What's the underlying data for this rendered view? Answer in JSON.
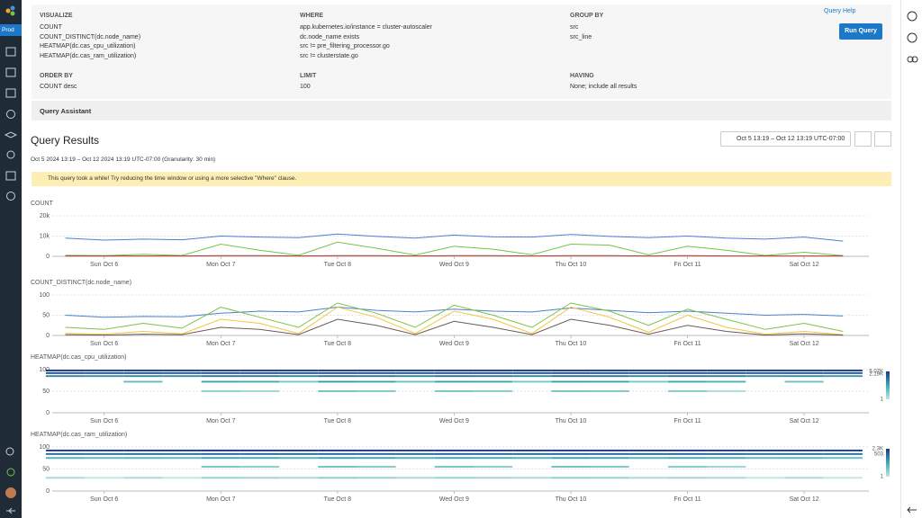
{
  "nav": {
    "env": "Prod"
  },
  "query": {
    "visualize": {
      "label": "VISUALIZE",
      "items": [
        "COUNT",
        "COUNT_DISTINCT(dc.node_name)",
        "HEATMAP(dc.cas_cpu_utilization)",
        "HEATMAP(dc.cas_ram_utilization)"
      ]
    },
    "where": {
      "label": "WHERE",
      "items": [
        "app.kubernetes.io/instance = cluster-autoscaler",
        "dc.node_name exists",
        "src != pre_filtering_processor.go",
        "src != clusterstate.go"
      ]
    },
    "group_by": {
      "label": "GROUP BY",
      "items": [
        "src",
        "src_line"
      ]
    },
    "order_by": {
      "label": "ORDER BY",
      "items": [
        "COUNT desc"
      ]
    },
    "limit": {
      "label": "LIMIT",
      "items": [
        100
      ]
    },
    "having": {
      "label": "HAVING",
      "items": [
        "None; include all results"
      ]
    },
    "help": "Query Help",
    "run": "Run Query",
    "assistant": "Query Assistant"
  },
  "results": {
    "title": "Query Results",
    "range": "Oct 5 13:19 – Oct 12 13:19 UTC-07:00",
    "subtitle": "Oct 5 2024 13:19 – Oct 12 2024 13:19 UTC-07:00 (Granularity: 30 min)",
    "warning": "This query took a while! Try reducing the time window or using a more selective \"Where\" clause."
  },
  "chart_data": [
    {
      "type": "line",
      "title": "COUNT",
      "x": [
        "2024-10-05T16:00",
        "2024-10-06T00:00",
        "2024-10-06T08:00",
        "2024-10-06T16:00",
        "2024-10-07T00:00",
        "2024-10-07T08:00",
        "2024-10-07T16:00",
        "2024-10-08T00:00",
        "2024-10-08T08:00",
        "2024-10-08T16:00",
        "2024-10-09T00:00",
        "2024-10-09T08:00",
        "2024-10-09T16:00",
        "2024-10-10T00:00",
        "2024-10-10T08:00",
        "2024-10-10T16:00",
        "2024-10-11T00:00",
        "2024-10-11T08:00",
        "2024-10-11T16:00",
        "2024-10-12T00:00",
        "2024-10-12T08:00"
      ],
      "xlim": [
        "2024-10-05T13:19",
        "2024-10-12T13:19"
      ],
      "xticks": [
        {
          "value": "2024-10-06T00:00",
          "label": "Sun Oct 6"
        },
        {
          "value": "2024-10-07T00:00",
          "label": "Mon Oct 7"
        },
        {
          "value": "2024-10-08T00:00",
          "label": "Tue Oct 8"
        },
        {
          "value": "2024-10-09T00:00",
          "label": "Wed Oct 9"
        },
        {
          "value": "2024-10-10T00:00",
          "label": "Thu Oct 10"
        },
        {
          "value": "2024-10-11T00:00",
          "label": "Fri Oct 11"
        },
        {
          "value": "2024-10-12T00:00",
          "label": "Sat Oct 12"
        }
      ],
      "ylim": [
        0,
        20000
      ],
      "yticks": [
        0,
        {
          "value": 10000,
          "label": "10k"
        },
        {
          "value": 20000,
          "label": "20k"
        }
      ],
      "grid": true,
      "series": [
        {
          "color": "#4a7fd4",
          "values": [
            9000,
            8000,
            8500,
            8200,
            10000,
            9500,
            9200,
            11000,
            9800,
            9000,
            10500,
            9600,
            9500,
            10800,
            9800,
            9200,
            10000,
            9000,
            8500,
            9500,
            7500
          ]
        },
        {
          "color": "#7cc242",
          "values": [
            500,
            300,
            1000,
            400,
            6000,
            3000,
            500,
            7000,
            4000,
            600,
            5000,
            3500,
            800,
            6000,
            5500,
            700,
            5000,
            3000,
            400,
            2000,
            300
          ]
        },
        {
          "color": "#b03a2e",
          "values": [
            200,
            200,
            200,
            200,
            300,
            300,
            200,
            300,
            300,
            200,
            300,
            300,
            200,
            300,
            300,
            200,
            300,
            200,
            200,
            200,
            200
          ]
        }
      ]
    },
    {
      "type": "line",
      "title": "COUNT_DISTINCT(dc.node_name)",
      "x": [
        "2024-10-05T16:00",
        "2024-10-06T00:00",
        "2024-10-06T08:00",
        "2024-10-06T16:00",
        "2024-10-07T00:00",
        "2024-10-07T08:00",
        "2024-10-07T16:00",
        "2024-10-08T00:00",
        "2024-10-08T08:00",
        "2024-10-08T16:00",
        "2024-10-09T00:00",
        "2024-10-09T08:00",
        "2024-10-09T16:00",
        "2024-10-10T00:00",
        "2024-10-10T08:00",
        "2024-10-10T16:00",
        "2024-10-11T00:00",
        "2024-10-11T08:00",
        "2024-10-11T16:00",
        "2024-10-12T00:00",
        "2024-10-12T08:00"
      ],
      "xlim": [
        "2024-10-05T13:19",
        "2024-10-12T13:19"
      ],
      "xticks": [
        {
          "value": "2024-10-06T00:00",
          "label": "Sun Oct 6"
        },
        {
          "value": "2024-10-07T00:00",
          "label": "Mon Oct 7"
        },
        {
          "value": "2024-10-08T00:00",
          "label": "Tue Oct 8"
        },
        {
          "value": "2024-10-09T00:00",
          "label": "Wed Oct 9"
        },
        {
          "value": "2024-10-10T00:00",
          "label": "Thu Oct 10"
        },
        {
          "value": "2024-10-11T00:00",
          "label": "Fri Oct 11"
        },
        {
          "value": "2024-10-12T00:00",
          "label": "Sat Oct 12"
        }
      ],
      "ylim": [
        0,
        100
      ],
      "yticks": [
        0,
        50,
        100
      ],
      "grid": true,
      "series": [
        {
          "color": "#4a7fd4",
          "values": [
            50,
            45,
            47,
            46,
            55,
            60,
            58,
            70,
            62,
            58,
            65,
            60,
            58,
            68,
            62,
            56,
            60,
            55,
            50,
            52,
            48
          ]
        },
        {
          "color": "#7cc242",
          "values": [
            20,
            15,
            30,
            18,
            70,
            45,
            20,
            80,
            55,
            20,
            75,
            50,
            20,
            80,
            60,
            25,
            65,
            40,
            15,
            30,
            10
          ]
        },
        {
          "color": "#f2c53d",
          "values": [
            5,
            3,
            10,
            4,
            40,
            30,
            5,
            70,
            45,
            5,
            60,
            40,
            5,
            70,
            45,
            8,
            50,
            20,
            3,
            10,
            2
          ]
        },
        {
          "color": "#6b5a54",
          "values": [
            2,
            1,
            3,
            2,
            20,
            15,
            2,
            40,
            25,
            2,
            35,
            20,
            2,
            40,
            25,
            3,
            25,
            10,
            1,
            4,
            1
          ]
        }
      ]
    },
    {
      "type": "heatmap",
      "title": "HEATMAP(dc.cas_cpu_utilization)",
      "x": [
        "2024-10-05T16:00",
        "2024-10-06T00:00",
        "2024-10-06T08:00",
        "2024-10-06T16:00",
        "2024-10-07T00:00",
        "2024-10-07T08:00",
        "2024-10-07T16:00",
        "2024-10-08T00:00",
        "2024-10-08T08:00",
        "2024-10-08T16:00",
        "2024-10-09T00:00",
        "2024-10-09T08:00",
        "2024-10-09T16:00",
        "2024-10-10T00:00",
        "2024-10-10T08:00",
        "2024-10-10T16:00",
        "2024-10-11T00:00",
        "2024-10-11T08:00",
        "2024-10-11T16:00",
        "2024-10-12T00:00",
        "2024-10-12T08:00"
      ],
      "xlim": [
        "2024-10-05T13:19",
        "2024-10-12T13:19"
      ],
      "xticks": [
        {
          "value": "2024-10-06T00:00",
          "label": "Sun Oct 6"
        },
        {
          "value": "2024-10-07T00:00",
          "label": "Mon Oct 7"
        },
        {
          "value": "2024-10-08T00:00",
          "label": "Tue Oct 8"
        },
        {
          "value": "2024-10-09T00:00",
          "label": "Wed Oct 9"
        },
        {
          "value": "2024-10-10T00:00",
          "label": "Thu Oct 10"
        },
        {
          "value": "2024-10-11T00:00",
          "label": "Fri Oct 11"
        },
        {
          "value": "2024-10-12T00:00",
          "label": "Sat Oct 12"
        }
      ],
      "ylim": [
        0,
        100
      ],
      "yticks": [
        0,
        50,
        100
      ],
      "grid": true,
      "y": [
        98,
        92,
        85,
        72,
        50
      ],
      "z": [
        [
          4800,
          4500,
          4700,
          4600,
          5070,
          4900,
          4700,
          5000,
          4800,
          4600,
          4900,
          4800,
          4700,
          5000,
          4900,
          4600,
          4800,
          4700,
          4500,
          4600,
          4400
        ],
        [
          2000,
          1800,
          1900,
          1700,
          2190,
          2100,
          1900,
          2150,
          2000,
          1800,
          2100,
          2000,
          1900,
          2150,
          2050,
          1800,
          2000,
          1900,
          1700,
          1800,
          1600
        ],
        [
          300,
          200,
          250,
          220,
          600,
          500,
          300,
          700,
          550,
          300,
          650,
          500,
          300,
          700,
          600,
          300,
          550,
          400,
          200,
          250,
          150
        ],
        [
          null,
          null,
          20,
          null,
          80,
          60,
          10,
          120,
          90,
          15,
          100,
          80,
          10,
          110,
          90,
          10,
          70,
          40,
          null,
          15,
          null
        ],
        [
          null,
          null,
          null,
          null,
          5,
          3,
          null,
          12,
          8,
          null,
          10,
          6,
          null,
          11,
          9,
          null,
          6,
          2,
          null,
          null,
          null
        ]
      ],
      "colors": [
        "#bfe7e3",
        "#3fa9b3",
        "#1c3a8a"
      ],
      "colorbar": [
        {
          "value": 5070,
          "label": "5.07K"
        },
        {
          "value": 2190,
          "label": "2.19K"
        },
        1
      ]
    },
    {
      "type": "heatmap",
      "title": "HEATMAP(dc.cas_ram_utilization)",
      "x": [
        "2024-10-05T16:00",
        "2024-10-06T00:00",
        "2024-10-06T08:00",
        "2024-10-06T16:00",
        "2024-10-07T00:00",
        "2024-10-07T08:00",
        "2024-10-07T16:00",
        "2024-10-08T00:00",
        "2024-10-08T08:00",
        "2024-10-08T16:00",
        "2024-10-09T00:00",
        "2024-10-09T08:00",
        "2024-10-09T16:00",
        "2024-10-10T00:00",
        "2024-10-10T08:00",
        "2024-10-10T16:00",
        "2024-10-11T00:00",
        "2024-10-11T08:00",
        "2024-10-11T16:00",
        "2024-10-12T00:00",
        "2024-10-12T08:00"
      ],
      "xlim": [
        "2024-10-05T13:19",
        "2024-10-12T13:19"
      ],
      "xticks": [
        {
          "value": "2024-10-06T00:00",
          "label": "Sun Oct 6"
        },
        {
          "value": "2024-10-07T00:00",
          "label": "Mon Oct 7"
        },
        {
          "value": "2024-10-08T00:00",
          "label": "Tue Oct 8"
        },
        {
          "value": "2024-10-09T00:00",
          "label": "Wed Oct 9"
        },
        {
          "value": "2024-10-10T00:00",
          "label": "Thu Oct 10"
        },
        {
          "value": "2024-10-11T00:00",
          "label": "Fri Oct 11"
        },
        {
          "value": "2024-10-12T00:00",
          "label": "Sat Oct 12"
        }
      ],
      "ylim": [
        0,
        100
      ],
      "yticks": [
        0,
        50,
        100
      ],
      "grid": true,
      "y": [
        92,
        84,
        75,
        55,
        30
      ],
      "z": [
        [
          2100,
          2000,
          2050,
          2000,
          2300,
          2200,
          2100,
          2250,
          2150,
          2050,
          2200,
          2150,
          2100,
          2250,
          2200,
          2050,
          2150,
          2100,
          2000,
          2050,
          1950
        ],
        [
          400,
          350,
          380,
          360,
          503,
          480,
          420,
          500,
          470,
          400,
          490,
          460,
          420,
          500,
          480,
          400,
          470,
          430,
          360,
          380,
          340
        ],
        [
          30,
          20,
          25,
          20,
          60,
          50,
          30,
          70,
          55,
          30,
          60,
          50,
          30,
          70,
          55,
          30,
          50,
          40,
          20,
          25,
          15
        ],
        [
          null,
          null,
          null,
          null,
          8,
          5,
          null,
          10,
          6,
          null,
          9,
          5,
          null,
          10,
          7,
          null,
          6,
          3,
          null,
          null,
          null
        ],
        [
          2,
          1,
          2,
          1,
          4,
          3,
          2,
          5,
          4,
          2,
          4,
          3,
          2,
          5,
          4,
          2,
          3,
          2,
          1,
          2,
          1
        ]
      ],
      "colors": [
        "#bfe7e3",
        "#3fa9b3",
        "#1c3a8a"
      ],
      "colorbar": [
        {
          "value": 2300,
          "label": "2.3K"
        },
        503,
        1
      ]
    }
  ]
}
